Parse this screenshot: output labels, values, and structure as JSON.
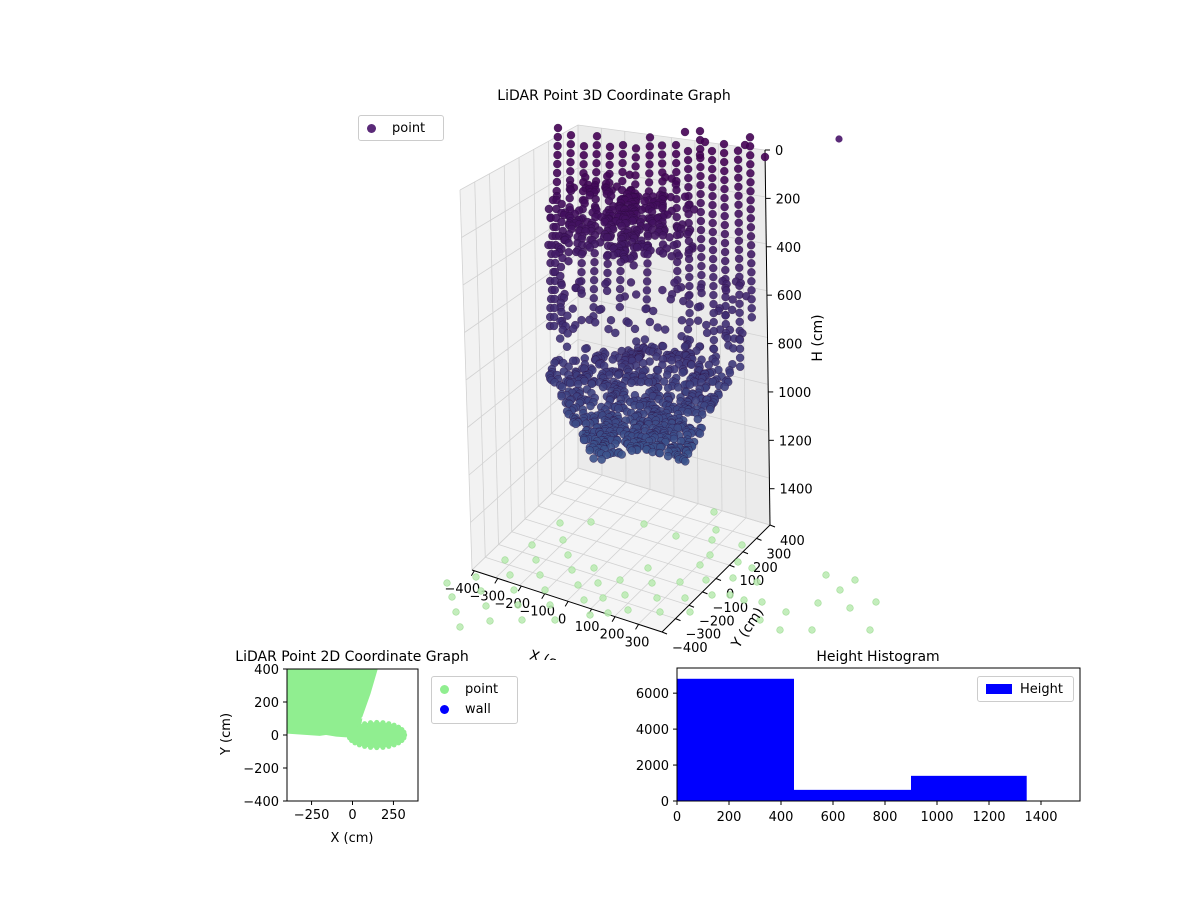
{
  "chart_data": [
    {
      "type": "scatter",
      "title": "LiDAR Point 3D Coordinate Graph",
      "xlabel": "X (cm)",
      "ylabel": "Y (cm)",
      "zlabel": "H (cm)",
      "x_ticks": [
        "−400",
        "−300",
        "−200",
        "−100",
        "0",
        "100",
        "200",
        "300"
      ],
      "y_ticks": [
        "400",
        "300",
        "200",
        "100",
        "0",
        "−100",
        "−200",
        "−300",
        "−400"
      ],
      "z_ticks": [
        "0",
        "200",
        "400",
        "600",
        "800",
        "1000",
        "1200",
        "1400"
      ],
      "zlim": [
        1550,
        0
      ],
      "legend": [
        "point"
      ],
      "legend_position": "upper-left",
      "series": [
        {
          "name": "point",
          "color_top": "#440154",
          "color_bottom": "#3b528b"
        }
      ]
    },
    {
      "type": "scatter",
      "title": "LiDAR Point 2D Coordinate Graph",
      "xlabel": "X (cm)",
      "ylabel": "Y (cm)",
      "xlim": [
        -400,
        400
      ],
      "ylim": [
        -400,
        400
      ],
      "x_ticks": [
        "−250",
        "0",
        "250"
      ],
      "y_ticks": [
        "400",
        "200",
        "0",
        "−200",
        "−400"
      ],
      "legend": [
        "point",
        "wall"
      ],
      "legend_position": "outside-right",
      "series": [
        {
          "name": "point",
          "color": "#90ee90"
        },
        {
          "name": "wall",
          "color": "#0000ff"
        }
      ]
    },
    {
      "type": "bar",
      "title": "Height Histogram",
      "xlim": [
        0,
        1550
      ],
      "ylim": [
        0,
        7400
      ],
      "x_ticks": [
        "0",
        "200",
        "400",
        "600",
        "800",
        "1000",
        "1200",
        "1400"
      ],
      "y_ticks": [
        "0",
        "2000",
        "4000",
        "6000"
      ],
      "bins": [
        [
          0,
          450
        ],
        [
          450,
          900
        ],
        [
          900,
          1345
        ]
      ],
      "values": [
        6800,
        620,
        1400
      ],
      "legend": [
        "Height"
      ],
      "legend_position": "upper-right",
      "color": "#0000ff"
    }
  ]
}
